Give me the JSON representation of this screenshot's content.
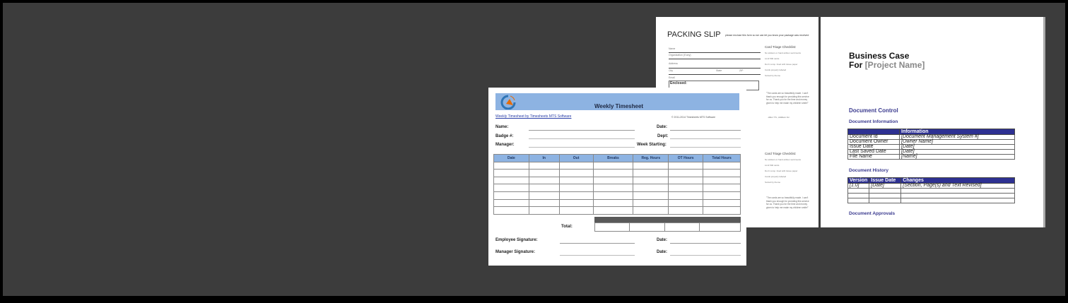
{
  "packing_slip": {
    "title": "PACKING SLIP",
    "subtitle": "please enclose this form so we can let you know your package was received",
    "fields": [
      "Name",
      "Organization (if any)",
      "Address",
      "City",
      "State",
      "ZIP",
      "Email"
    ],
    "enclosed_label": "Enclosed:",
    "checklist_title": "Card Triage Checklist:",
    "checklist_items": [
      "No stickers or hand-written sentiments",
      "Limit 500 cards",
      "Don't comp. lined with tissue paper",
      "Cards properly labeled",
      "Sorted by theme"
    ],
    "quote": "\"The cards are so beautifully made. I can't thank you enough for providing this service for us. Thank you for the time and money given to help me make my children smile!\"",
    "quote_author": "-Allen T.S., Addison Inc."
  },
  "business_case": {
    "title": "Business Case",
    "for_label": "For",
    "project_placeholder": "[Project Name]",
    "document_control": "Document Control",
    "document_information": "Document Information",
    "info_header": "Information",
    "info_rows": [
      {
        "label": "Document Id",
        "value": "[Document Management System #]"
      },
      {
        "label": "Document Owner",
        "value": "[Owner Name]"
      },
      {
        "label": "Issue Date",
        "value": "[Date]"
      },
      {
        "label": "Last Saved Date",
        "value": "[Date]"
      },
      {
        "label": "File Name",
        "value": "[Name]"
      }
    ],
    "document_history": "Document History",
    "history_headers": [
      "Version",
      "Issue Date",
      "Changes"
    ],
    "history_rows": [
      [
        "[1.0]",
        "[Date]",
        "[Section, Page(s) and Text Revised]"
      ]
    ],
    "document_approvals": "Document Approvals"
  },
  "timesheet": {
    "title": "Weekly Timesheet",
    "link": "Weekly Timesheet by Timesheets MTS Software",
    "copyright": "© 2011-2014 Timesheets MTS Software",
    "name_label": "Name:",
    "badge_label": "Badge #:",
    "manager_label": "Manager:",
    "date_label": "Date:",
    "dept_label": "Dept:",
    "week_label": "Week Starting:",
    "columns": [
      "Date",
      "In",
      "Out",
      "Breaks",
      "Reg. Hours",
      "OT Hours",
      "Total Hours"
    ],
    "total_label": "Total:",
    "employee_sig": "Employee Signature:",
    "manager_sig": "Manager Signature:",
    "sig_date": "Date:",
    "colors": {
      "header_band": "#8db3e2",
      "logo": "#2e75b6",
      "logo_accent": "#e46c0a"
    }
  }
}
